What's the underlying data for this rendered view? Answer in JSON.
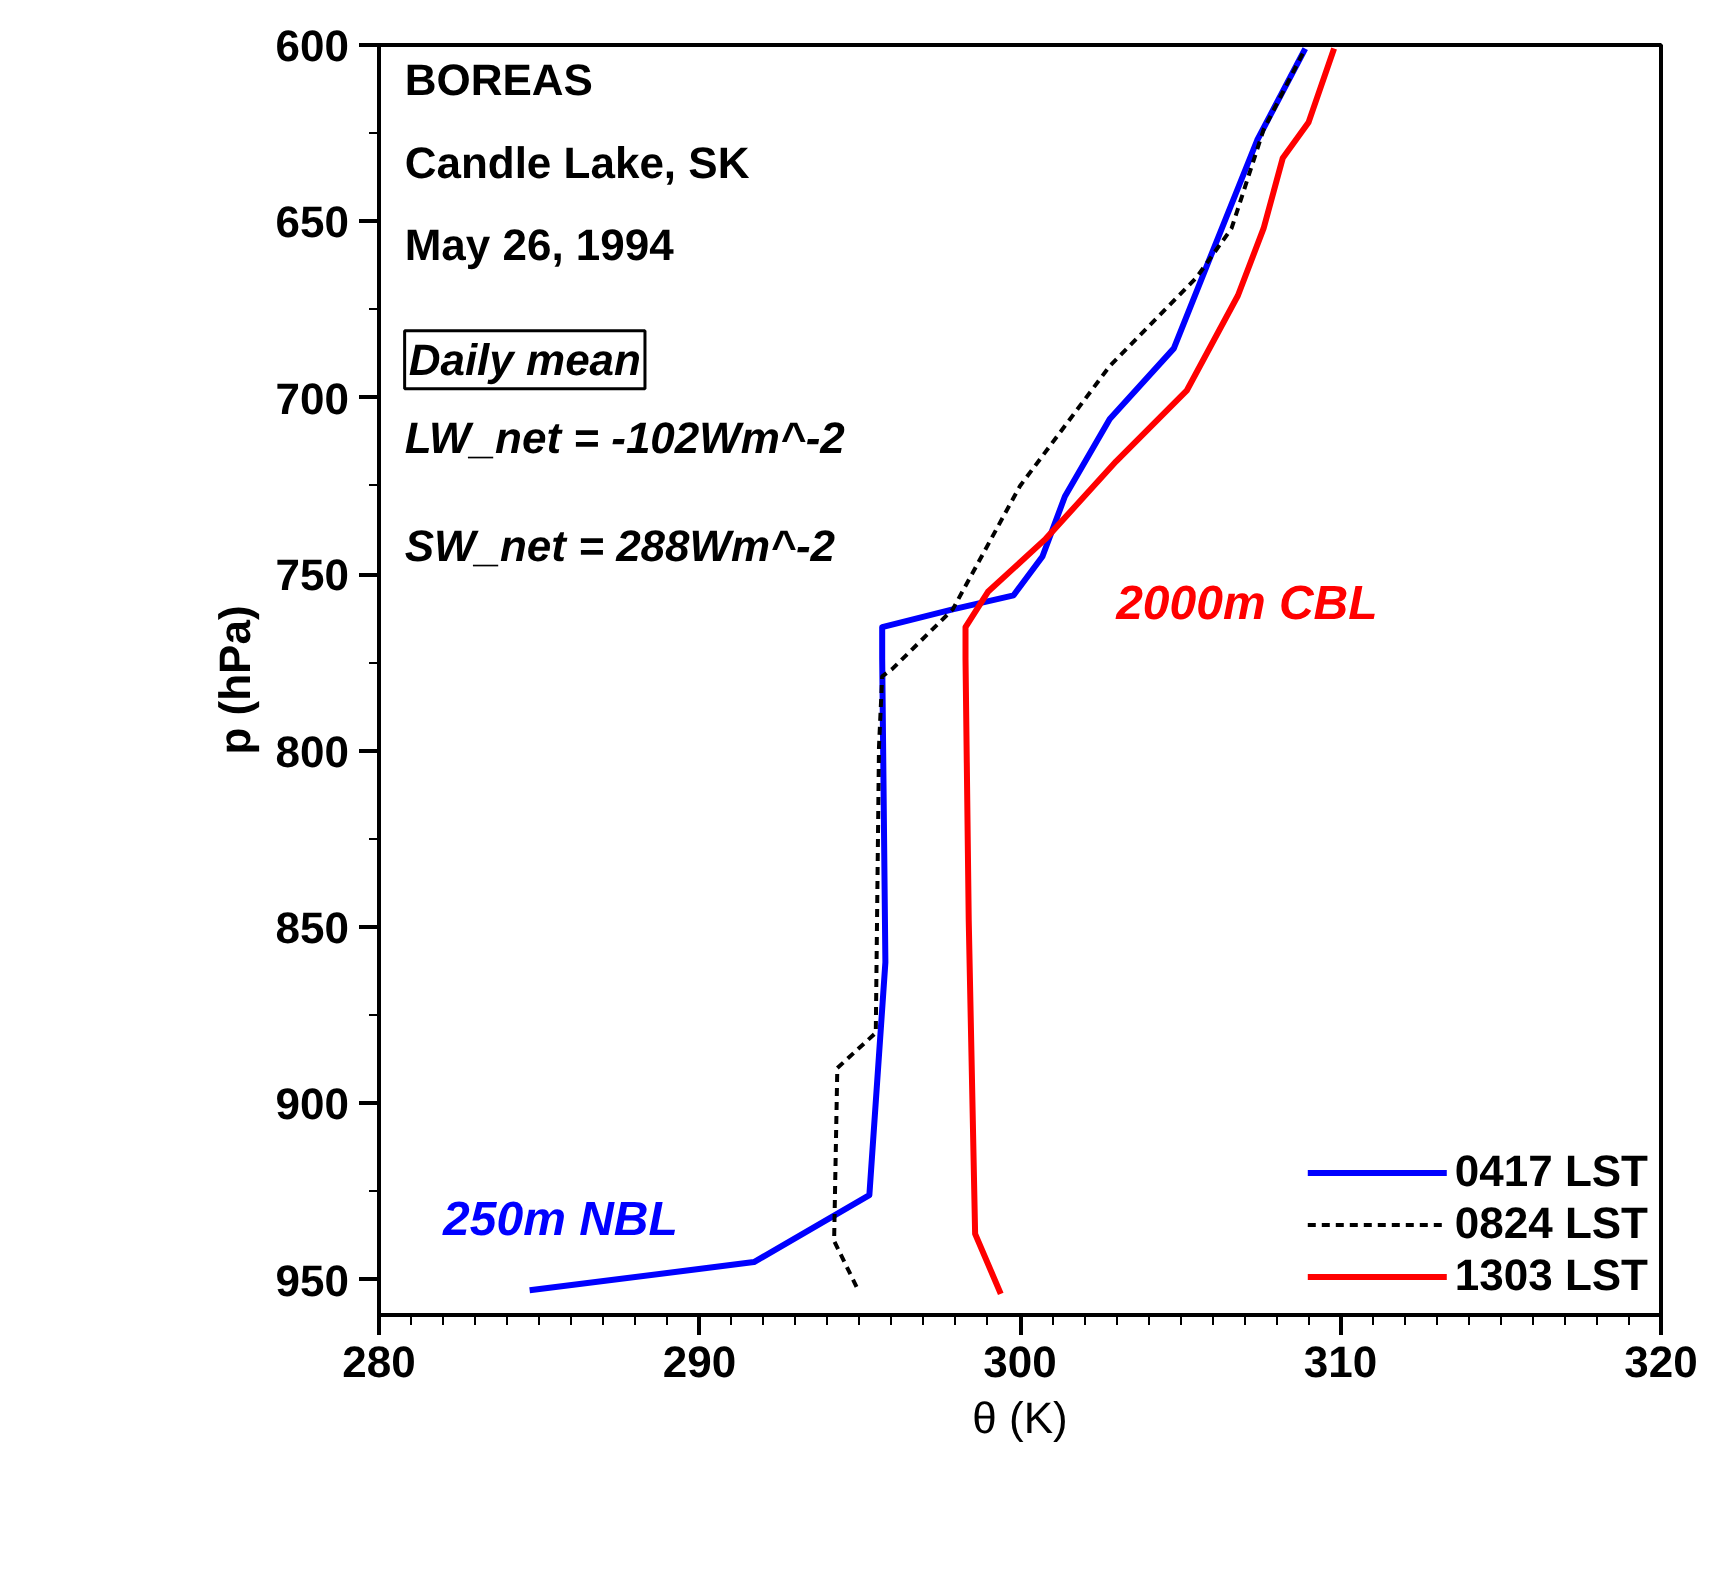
{
  "chart_data": {
    "type": "line",
    "xlabel": "θ (K)",
    "ylabel": "p (hPa)",
    "xlim": [
      280,
      320
    ],
    "xticks": [
      280,
      290,
      300,
      310,
      320
    ],
    "ylim": [
      960,
      600
    ],
    "yticks": [
      600,
      650,
      700,
      750,
      800,
      850,
      900,
      950
    ],
    "legend": "bottom right",
    "grid": false,
    "series": [
      {
        "name": "0417 LST",
        "color": "#0000ff",
        "line_style": "solid",
        "x": [
          284.7,
          291.7,
          295.3,
          295.8,
          295.7,
          295.7,
          297.9,
          299.8,
          300.7,
          301.4,
          302.8,
          304.8,
          305.9,
          307.4,
          308.9
        ],
        "values": [
          953,
          945,
          926,
          860,
          774,
          765,
          760,
          756,
          745,
          728,
          706,
          686,
          661,
          627,
          601
        ]
      },
      {
        "name": "0824 LST",
        "color": "#000000",
        "line_style": "dashed",
        "x": [
          294.9,
          294.2,
          294.3,
          295.5,
          295.6,
          295.7,
          296.0,
          297.9,
          300.0,
          302.8,
          305.5,
          306.6,
          307.6,
          308.9
        ],
        "values": [
          952,
          939,
          890,
          880,
          799,
          779,
          777,
          760,
          725,
          691,
          666,
          652,
          624,
          601
        ]
      },
      {
        "name": "1303 LST",
        "color": "#ff0000",
        "line_style": "solid",
        "x": [
          299.4,
          298.6,
          298.4,
          298.3,
          298.3,
          299.0,
          300.8,
          303.0,
          305.2,
          306.8,
          307.6,
          308.2,
          309.0,
          309.8
        ],
        "values": [
          954,
          937,
          848,
          774,
          765,
          755,
          740,
          718,
          698,
          671,
          652,
          632,
          622,
          601
        ]
      }
    ],
    "annotations": [
      "BOREAS",
      "Candle Lake, SK",
      "May 26, 1994",
      "Daily mean",
      "LW_net = -102Wm^-2",
      "SW_net = 288Wm^-2",
      "250m NBL",
      "2000m CBL"
    ]
  }
}
